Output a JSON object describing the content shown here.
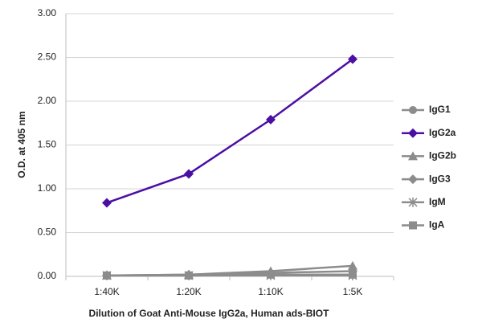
{
  "chart_data": {
    "type": "line",
    "x_label": "Dilution of Goat Anti-Mouse IgG2a, Human ads-BIOT",
    "y_label": "O.D. at 405 nm",
    "categories": [
      "1:40K",
      "1:20K",
      "1:10K",
      "1:5K"
    ],
    "ylim": [
      0,
      3
    ],
    "yticks": [
      {
        "value": 0,
        "label": "0.00"
      },
      {
        "value": 0.5,
        "label": "0.50"
      },
      {
        "value": 1,
        "label": "1.00"
      },
      {
        "value": 1.5,
        "label": "1.50"
      },
      {
        "value": 2,
        "label": "2.00"
      },
      {
        "value": 2.5,
        "label": "2.50"
      },
      {
        "value": 3,
        "label": "3.00"
      }
    ],
    "grid": true,
    "legend": "right",
    "series": [
      {
        "name": "IgG1",
        "color": "#8c8c8c",
        "marker": "circle",
        "values": [
          0.01,
          0.01,
          0.02,
          0.02
        ]
      },
      {
        "name": "IgG2a",
        "color": "#4b0fa3",
        "marker": "diamond",
        "values": [
          0.84,
          1.17,
          1.79,
          2.48
        ]
      },
      {
        "name": "IgG2b",
        "color": "#8c8c8c",
        "marker": "triangle",
        "values": [
          0.01,
          0.02,
          0.06,
          0.12
        ]
      },
      {
        "name": "IgG3",
        "color": "#8c8c8c",
        "marker": "diamond",
        "values": [
          0.01,
          0.02,
          0.04,
          0.06
        ]
      },
      {
        "name": "IgM",
        "color": "#8c8c8c",
        "marker": "asterisk",
        "values": [
          0.01,
          0.01,
          0.01,
          0.01
        ]
      },
      {
        "name": "IgA",
        "color": "#8c8c8c",
        "marker": "square",
        "values": [
          0.01,
          0.01,
          0.02,
          0.02
        ]
      }
    ]
  }
}
